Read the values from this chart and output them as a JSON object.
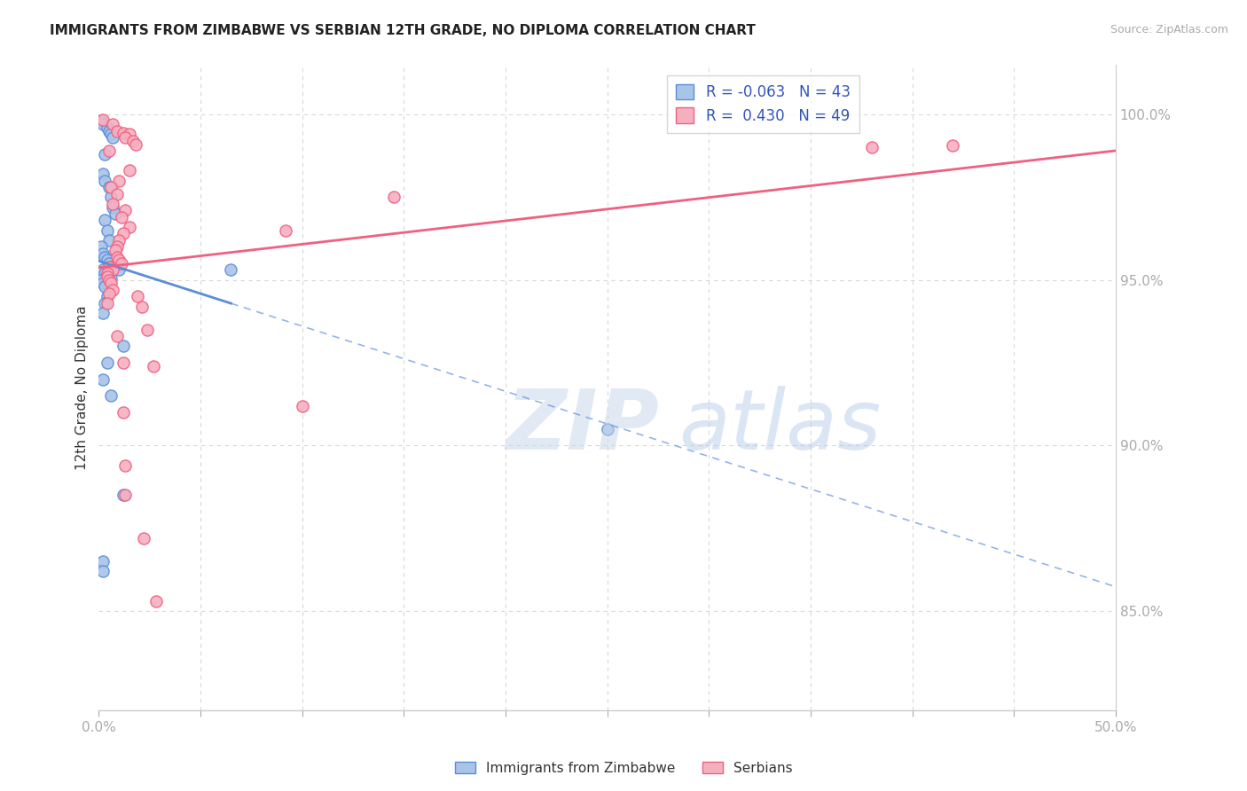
{
  "title": "IMMIGRANTS FROM ZIMBABWE VS SERBIAN 12TH GRADE, NO DIPLOMA CORRELATION CHART",
  "source": "Source: ZipAtlas.com",
  "ylabel": "12th Grade, No Diploma",
  "legend_label1": "Immigrants from Zimbabwe",
  "legend_label2": "Serbians",
  "R1": "-0.063",
  "N1": "43",
  "R2": "0.430",
  "N2": "49",
  "color1": "#a8c4e8",
  "color2": "#f5b0c0",
  "line_color1": "#5b8dd9",
  "line_color2": "#f06080",
  "y_ticks": [
    85.0,
    90.0,
    95.0,
    100.0
  ],
  "y_tick_labels": [
    "85.0%",
    "90.0%",
    "95.0%",
    "100.0%"
  ],
  "xmin": 0.0,
  "xmax": 0.5,
  "ymin": 82.0,
  "ymax": 101.5,
  "blue_scatter": [
    [
      0.001,
      99.8
    ],
    [
      0.002,
      99.7
    ],
    [
      0.004,
      99.6
    ],
    [
      0.005,
      99.5
    ],
    [
      0.006,
      99.4
    ],
    [
      0.007,
      99.3
    ],
    [
      0.003,
      98.8
    ],
    [
      0.002,
      98.2
    ],
    [
      0.003,
      98.0
    ],
    [
      0.005,
      97.8
    ],
    [
      0.006,
      97.5
    ],
    [
      0.007,
      97.2
    ],
    [
      0.008,
      97.0
    ],
    [
      0.003,
      96.8
    ],
    [
      0.004,
      96.5
    ],
    [
      0.005,
      96.2
    ],
    [
      0.001,
      96.0
    ],
    [
      0.002,
      95.8
    ],
    [
      0.003,
      95.7
    ],
    [
      0.004,
      95.6
    ],
    [
      0.005,
      95.5
    ],
    [
      0.006,
      95.4
    ],
    [
      0.002,
      95.3
    ],
    [
      0.003,
      95.2
    ],
    [
      0.004,
      95.15
    ],
    [
      0.005,
      95.1
    ],
    [
      0.006,
      95.05
    ],
    [
      0.001,
      95.0
    ],
    [
      0.002,
      94.9
    ],
    [
      0.003,
      94.8
    ],
    [
      0.004,
      94.5
    ],
    [
      0.003,
      94.3
    ],
    [
      0.002,
      94.0
    ],
    [
      0.01,
      95.3
    ],
    [
      0.065,
      95.3
    ],
    [
      0.012,
      93.0
    ],
    [
      0.004,
      92.5
    ],
    [
      0.002,
      92.0
    ],
    [
      0.006,
      91.5
    ],
    [
      0.012,
      88.5
    ],
    [
      0.002,
      86.5
    ],
    [
      0.002,
      86.2
    ],
    [
      0.25,
      90.5
    ]
  ],
  "pink_scatter": [
    [
      0.002,
      99.85
    ],
    [
      0.007,
      99.7
    ],
    [
      0.009,
      99.5
    ],
    [
      0.012,
      99.45
    ],
    [
      0.015,
      99.4
    ],
    [
      0.013,
      99.3
    ],
    [
      0.017,
      99.2
    ],
    [
      0.018,
      99.1
    ],
    [
      0.42,
      99.05
    ],
    [
      0.38,
      99.0
    ],
    [
      0.005,
      98.9
    ],
    [
      0.015,
      98.3
    ],
    [
      0.01,
      98.0
    ],
    [
      0.006,
      97.8
    ],
    [
      0.009,
      97.6
    ],
    [
      0.007,
      97.3
    ],
    [
      0.013,
      97.1
    ],
    [
      0.011,
      96.9
    ],
    [
      0.015,
      96.6
    ],
    [
      0.012,
      96.4
    ],
    [
      0.01,
      96.2
    ],
    [
      0.009,
      96.0
    ],
    [
      0.008,
      95.9
    ],
    [
      0.009,
      95.7
    ],
    [
      0.01,
      95.6
    ],
    [
      0.011,
      95.5
    ],
    [
      0.005,
      95.4
    ],
    [
      0.007,
      95.3
    ],
    [
      0.004,
      95.2
    ],
    [
      0.004,
      95.1
    ],
    [
      0.005,
      95.0
    ],
    [
      0.006,
      94.9
    ],
    [
      0.007,
      94.7
    ],
    [
      0.005,
      94.6
    ],
    [
      0.004,
      94.3
    ],
    [
      0.021,
      94.2
    ],
    [
      0.024,
      93.5
    ],
    [
      0.009,
      93.3
    ],
    [
      0.012,
      92.5
    ],
    [
      0.027,
      92.4
    ],
    [
      0.012,
      91.0
    ],
    [
      0.013,
      88.5
    ],
    [
      0.019,
      94.5
    ],
    [
      0.022,
      87.2
    ],
    [
      0.013,
      89.4
    ],
    [
      0.028,
      85.3
    ],
    [
      0.092,
      96.5
    ],
    [
      0.145,
      97.5
    ],
    [
      0.1,
      91.2
    ]
  ]
}
